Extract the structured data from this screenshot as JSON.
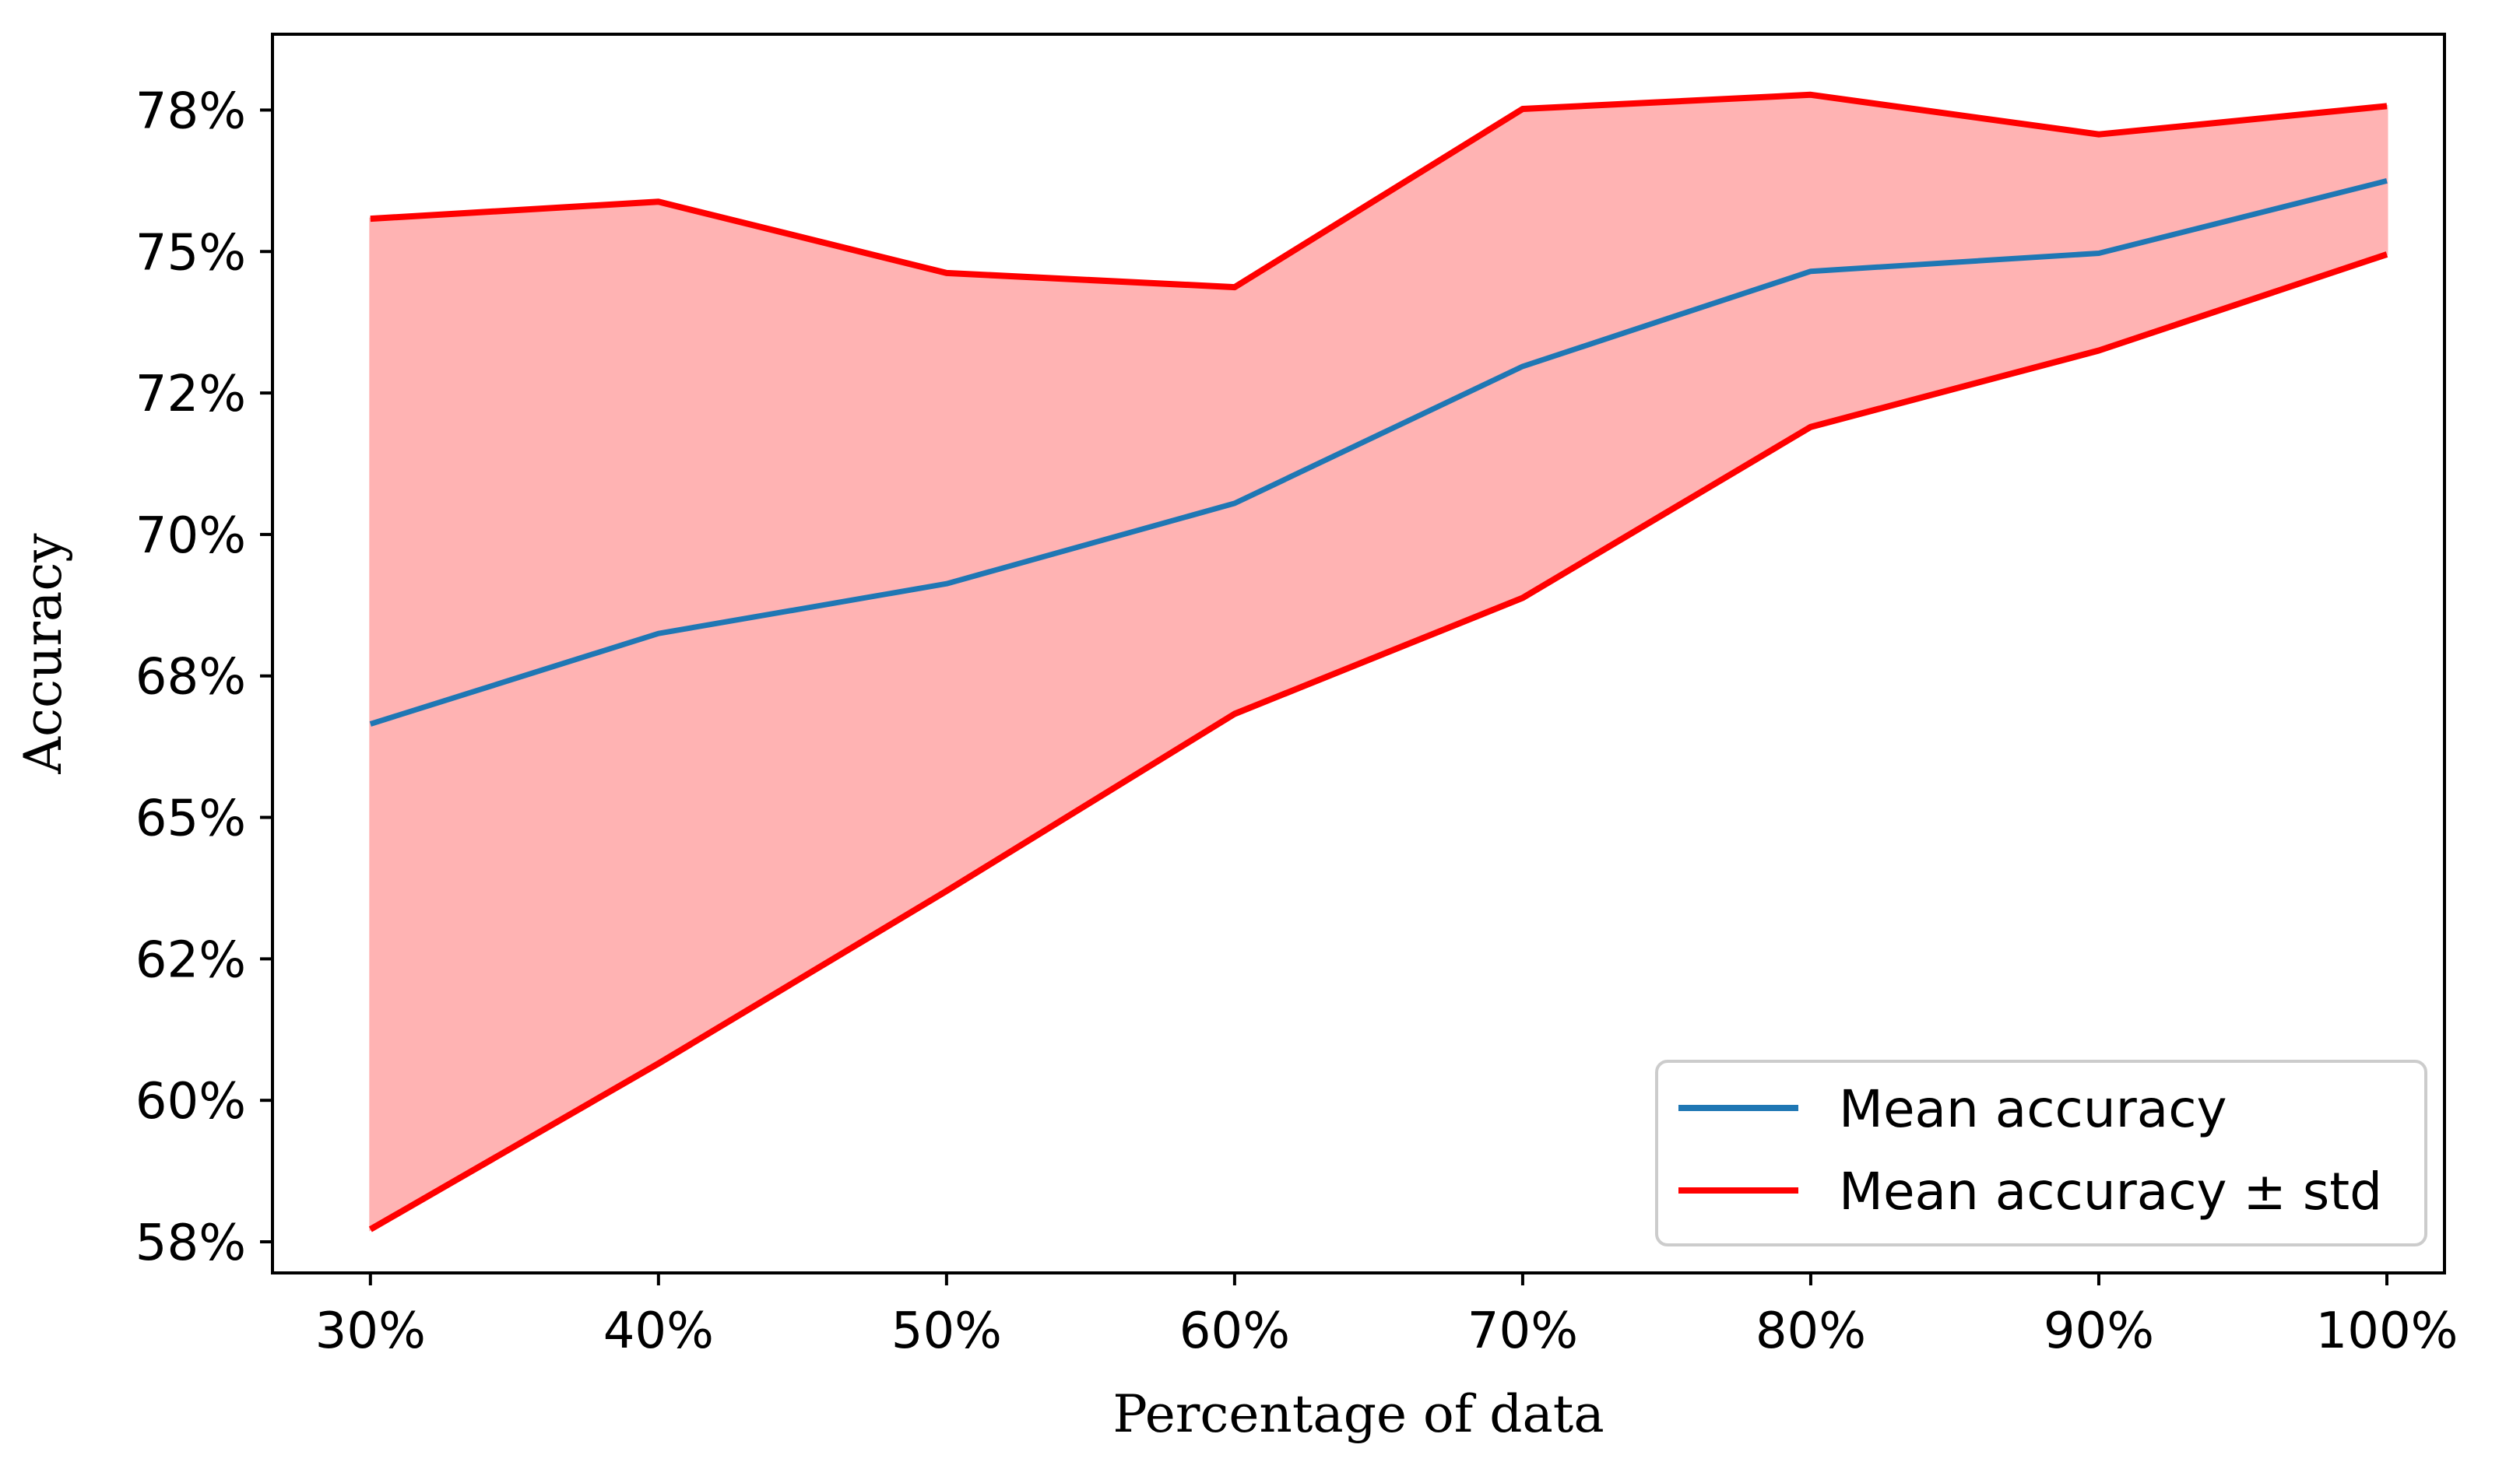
{
  "chart_data": {
    "type": "line",
    "title": "",
    "xlabel": "Percentage of data",
    "ylabel": "Accuracy",
    "x": [
      30,
      40,
      50,
      60,
      70,
      80,
      90,
      100
    ],
    "x_tick_labels": [
      "30%",
      "40%",
      "50%",
      "60%",
      "70%",
      "80%",
      "90%",
      "100%"
    ],
    "y_ticks": [
      0.575,
      0.6,
      0.625,
      0.65,
      0.675,
      0.7,
      0.725,
      0.75,
      0.775
    ],
    "y_tick_labels": [
      "58%",
      "60%",
      "62%",
      "65%",
      "68%",
      "70%",
      "72%",
      "75%",
      "78%"
    ],
    "xlim": [
      26.6,
      102.0
    ],
    "ylim": [
      0.5695,
      0.7884
    ],
    "series": [
      {
        "name": "Mean accuracy",
        "color": "#1f77b4",
        "values": [
          0.6665,
          0.6825,
          0.6913,
          0.7055,
          0.7297,
          0.7465,
          0.7497,
          0.7625
        ]
      },
      {
        "name": "Mean accuracy ± std",
        "color": "#ff0000",
        "upper": [
          0.7558,
          0.7588,
          0.7462,
          0.7437,
          0.7752,
          0.7777,
          0.7707,
          0.7757
        ],
        "lower": [
          0.5772,
          0.6065,
          0.637,
          0.6683,
          0.6888,
          0.719,
          0.7325,
          0.7495
        ]
      }
    ],
    "fill_color": "#ffb3b3",
    "grid": false,
    "legend_position": "lower-right"
  }
}
